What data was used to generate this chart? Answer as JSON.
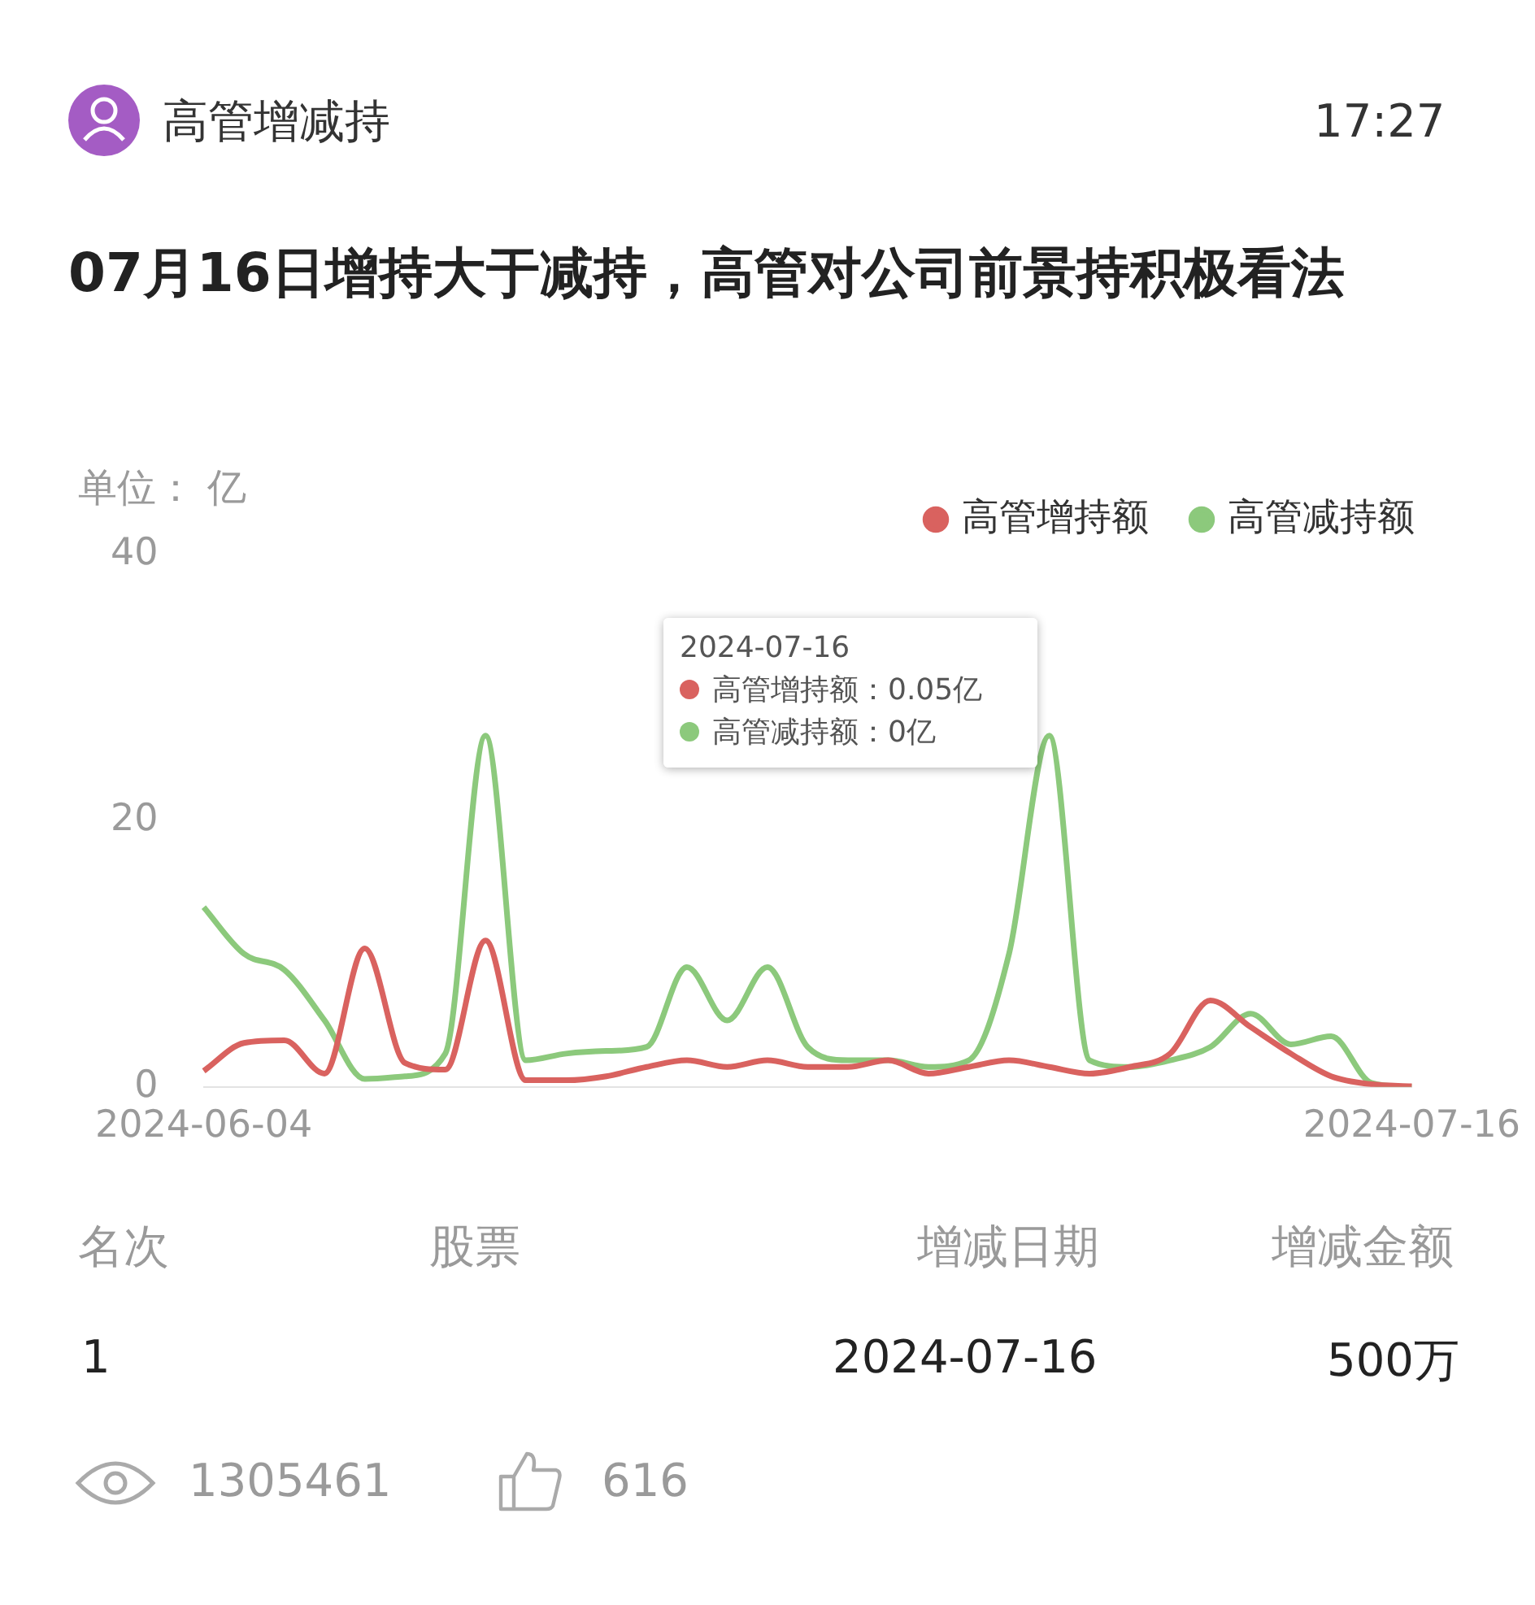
{
  "chart_data": {
    "type": "line",
    "title": "07月16日增持大于减持，高管对公司前景持积极看法",
    "ylabel": "单位： 亿",
    "categories": [
      "2024-06-04",
      null,
      null,
      null,
      null,
      null,
      null,
      null,
      null,
      null,
      null,
      null,
      null,
      null,
      null,
      null,
      null,
      null,
      null,
      null,
      null,
      null,
      null,
      null,
      null,
      null,
      null,
      null,
      null,
      null,
      "2024-07-16"
    ],
    "series": [
      {
        "name": "高管增持额",
        "color": "#d9625f",
        "values": [
          1.2,
          3.3,
          3.5,
          1,
          10.4,
          1.8,
          1.3,
          11,
          0.5,
          0.5,
          0.8,
          1.5,
          2,
          1.5,
          2,
          1.5,
          1.5,
          2,
          1,
          1.5,
          2,
          1.5,
          1,
          1.5,
          2.5,
          6.5,
          4.5,
          2.5,
          0.8,
          0.2,
          0.05
        ]
      },
      {
        "name": "高管减持额",
        "color": "#8cc97c",
        "values": [
          13.5,
          10,
          8.8,
          5,
          0.6,
          0.8,
          2.5,
          26.4,
          2,
          2.5,
          2.7,
          3,
          9,
          5,
          9,
          3,
          2,
          2,
          1.5,
          2,
          10,
          26.4,
          2,
          1.5,
          2,
          3,
          5.5,
          3.2,
          3.8,
          0.3,
          0
        ]
      }
    ],
    "ylim": [
      0,
      40
    ],
    "yticks": [
      0,
      20,
      40
    ],
    "grid": false,
    "legend": "top right",
    "marker": "none",
    "line_style": "solid",
    "annotations": [
      "高管增减持",
      "17:27",
      "2024-07-16",
      "高管增持额：0.05亿",
      "高管减持额：0亿",
      "名次",
      "股票",
      "增减日期",
      "增减金额",
      "1",
      "2024-07-16",
      "500万",
      "1305461",
      "616"
    ]
  }
}
